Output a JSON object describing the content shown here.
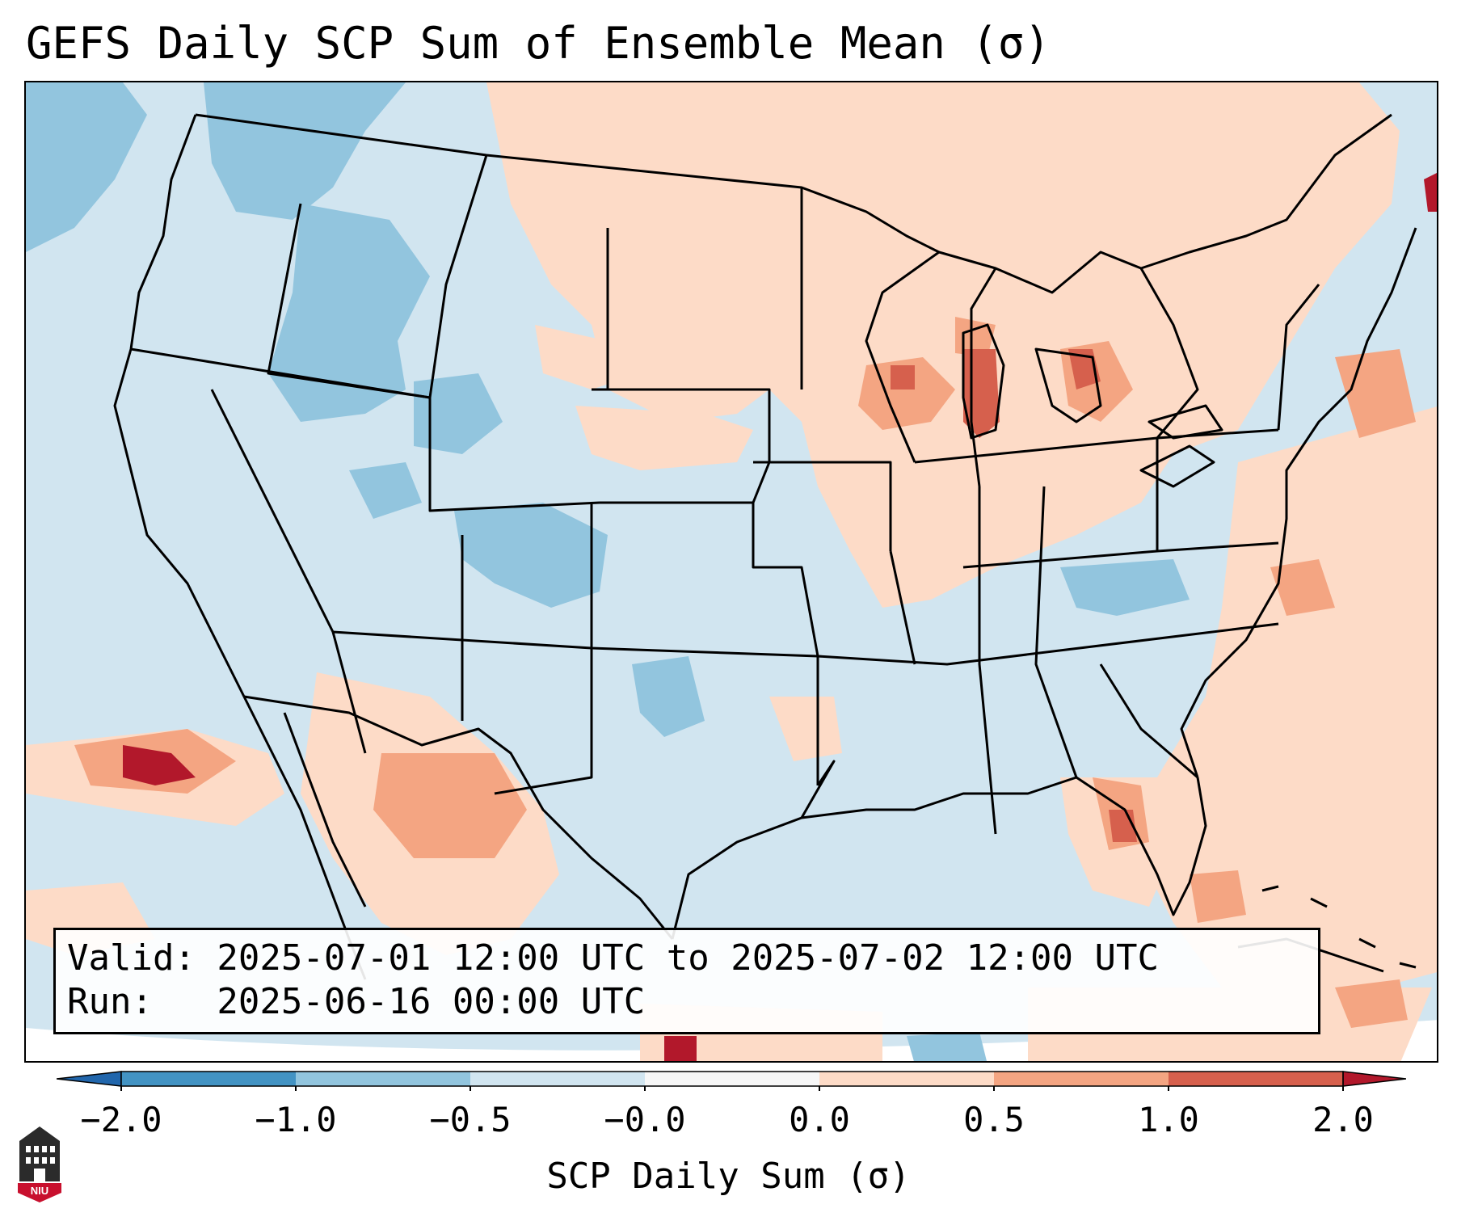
{
  "title": "GEFS Daily SCP Sum of Ensemble Mean (σ)",
  "map": {
    "region": "Contiguous United States",
    "field": "SCP daily sum anomaly",
    "units": "σ"
  },
  "info": {
    "valid_line": "Valid: 2025-07-01 12:00 UTC to 2025-07-02 12:00 UTC",
    "run_line": "Run:   2025-06-16 00:00 UTC"
  },
  "colorbar": {
    "label": "SCP Daily Sum (σ)",
    "ticks": [
      "−2.0",
      "−1.0",
      "−0.5",
      "−0.0",
      "0.0",
      "0.5",
      "1.0",
      "2.0"
    ],
    "colors": [
      "#4393c3",
      "#92c5de",
      "#d1e5f0",
      "#f7f7f7",
      "#fddbc7",
      "#f4a582",
      "#d6604d"
    ],
    "extend_low_color": "#2166ac",
    "extend_high_color": "#b2182b"
  },
  "logo": {
    "text": "NIU"
  }
}
